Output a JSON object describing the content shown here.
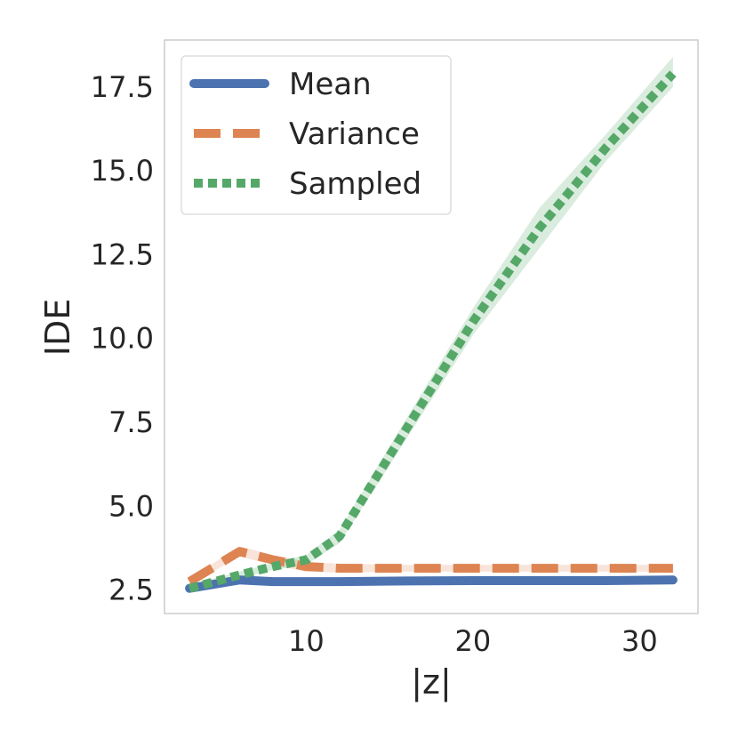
{
  "chart_data": {
    "type": "line",
    "title": "",
    "xlabel": "|z|",
    "ylabel": "IDE",
    "xlim": [
      1.5,
      33.5
    ],
    "ylim": [
      1.8,
      18.9
    ],
    "x_ticks": [
      10,
      20,
      30
    ],
    "y_ticks": [
      2.5,
      5.0,
      7.5,
      10.0,
      12.5,
      15.0,
      17.5
    ],
    "x_tick_labels": [
      "10",
      "20",
      "30"
    ],
    "y_tick_labels": [
      "2.5",
      "5.0",
      "7.5",
      "10.0",
      "12.5",
      "15.0",
      "17.5"
    ],
    "grid": false,
    "legend_position": "top-left",
    "series": [
      {
        "name": "Mean",
        "style": "solid",
        "color": "#4c72b0",
        "x": [
          3,
          6,
          8,
          10,
          12,
          16,
          20,
          24,
          28,
          32
        ],
        "y": [
          2.55,
          2.8,
          2.75,
          2.75,
          2.75,
          2.77,
          2.78,
          2.78,
          2.78,
          2.8
        ],
        "band_low": [
          2.5,
          2.75,
          2.7,
          2.7,
          2.7,
          2.72,
          2.73,
          2.73,
          2.73,
          2.75
        ],
        "band_high": [
          2.6,
          2.85,
          2.8,
          2.8,
          2.8,
          2.82,
          2.83,
          2.83,
          2.83,
          2.85
        ]
      },
      {
        "name": "Variance",
        "style": "dashed",
        "color": "#dd8452",
        "x": [
          3,
          6,
          8,
          10,
          12,
          16,
          20,
          24,
          28,
          32
        ],
        "y": [
          2.75,
          3.65,
          3.4,
          3.2,
          3.15,
          3.15,
          3.15,
          3.15,
          3.15,
          3.15
        ],
        "band_low": [
          2.65,
          3.5,
          3.25,
          3.05,
          3.02,
          3.05,
          3.05,
          3.05,
          3.05,
          3.05
        ],
        "band_high": [
          2.85,
          3.8,
          3.55,
          3.35,
          3.28,
          3.25,
          3.25,
          3.25,
          3.25,
          3.25
        ]
      },
      {
        "name": "Sampled",
        "style": "dotted",
        "color": "#55a868",
        "x": [
          3,
          6,
          8,
          10,
          12,
          16,
          20,
          24,
          28,
          32
        ],
        "y": [
          2.55,
          2.95,
          3.2,
          3.4,
          4.1,
          7.3,
          10.5,
          13.3,
          15.7,
          17.9
        ],
        "band_low": [
          2.45,
          2.85,
          3.1,
          3.25,
          3.9,
          7.0,
          10.1,
          12.7,
          15.3,
          17.5
        ],
        "band_high": [
          2.65,
          3.05,
          3.3,
          3.55,
          4.3,
          7.6,
          10.9,
          13.9,
          16.1,
          18.4
        ]
      }
    ]
  }
}
